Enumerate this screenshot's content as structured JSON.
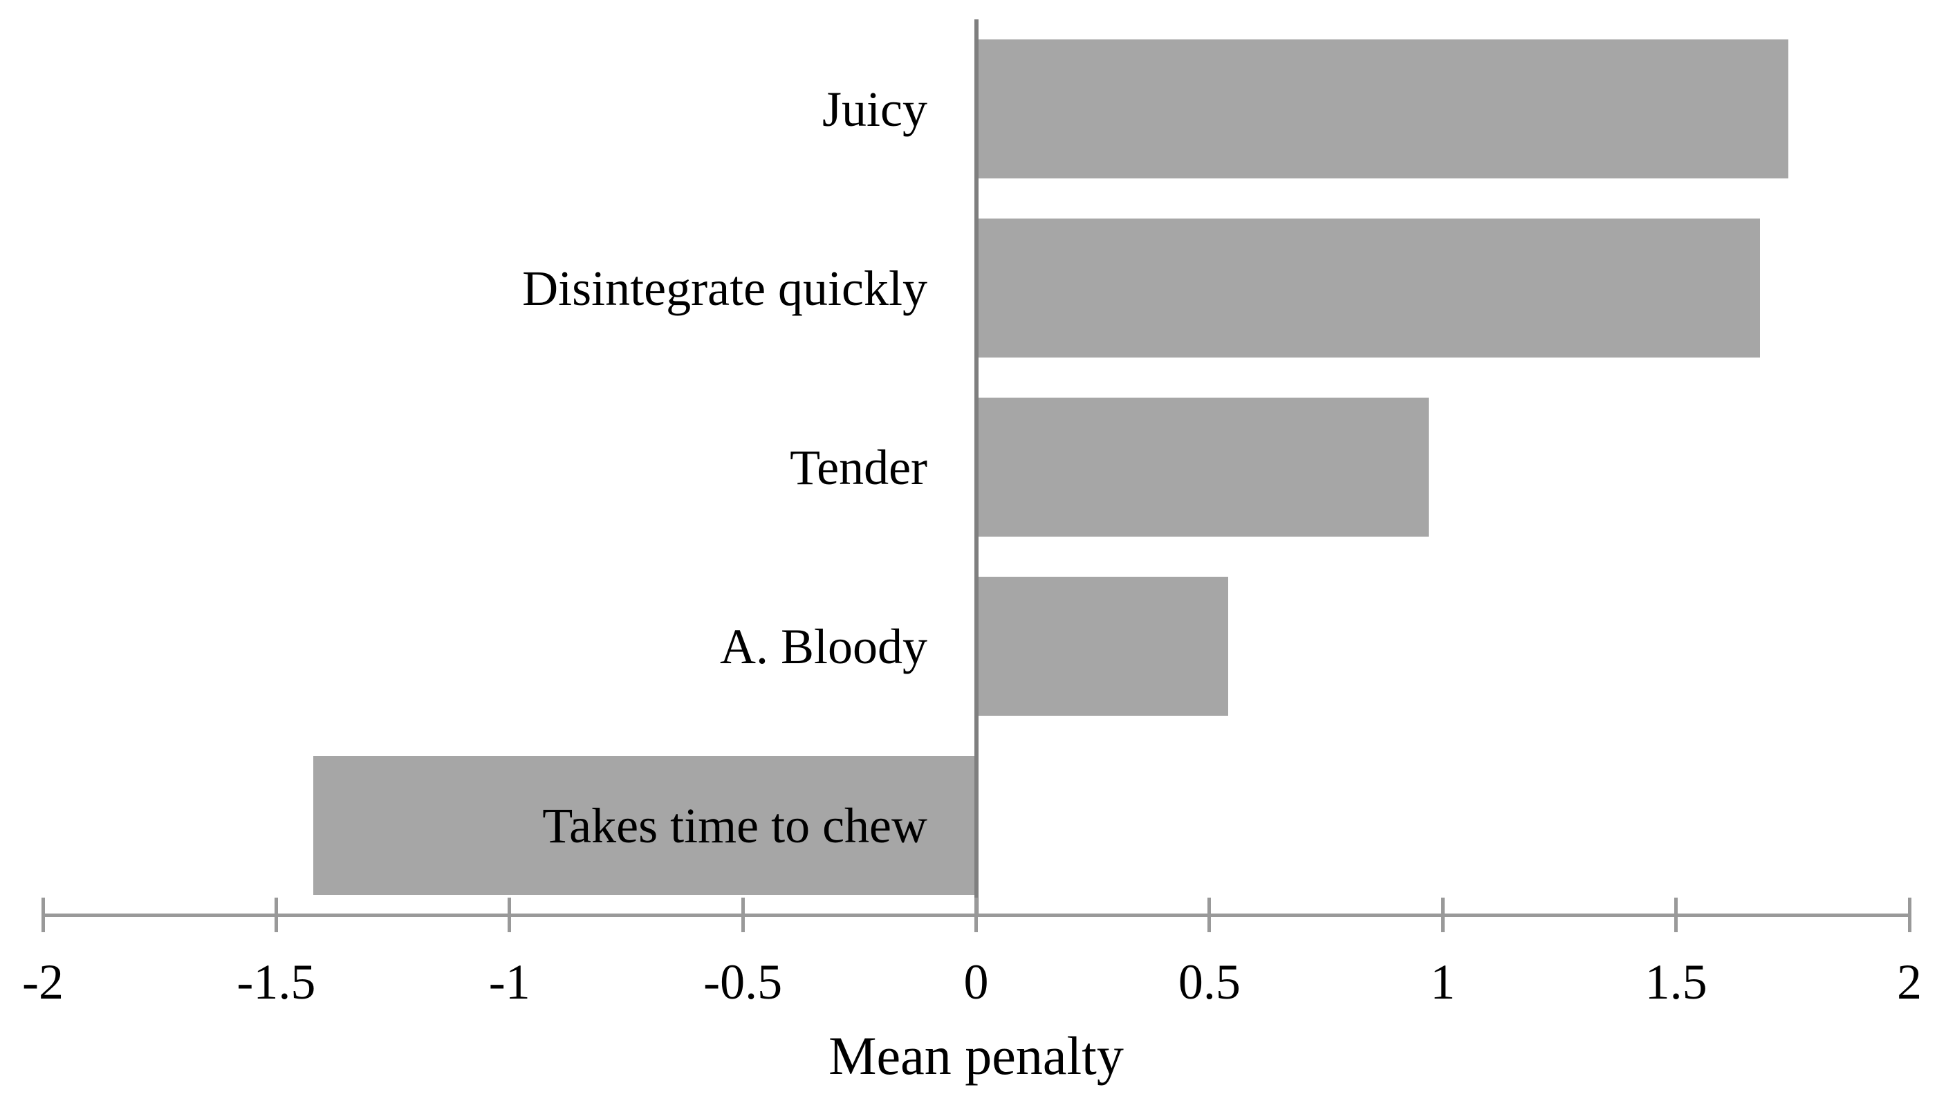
{
  "chart_data": {
    "type": "bar",
    "orientation": "horizontal",
    "title": "",
    "xlabel": "Mean penalty",
    "ylabel": "",
    "categories": [
      "Juicy",
      "Disintegrate quickly",
      "Tender",
      "A. Bloody",
      "Takes time to chew"
    ],
    "values": [
      1.74,
      1.68,
      0.97,
      0.54,
      -1.42
    ],
    "xlim": [
      -2,
      2
    ],
    "x_ticks": [
      -2,
      -1.5,
      -1,
      -0.5,
      0,
      0.5,
      1,
      1.5,
      2
    ],
    "x_tick_labels": [
      "-2",
      "-1.5",
      "-1",
      "-0.5",
      "0",
      "0.5",
      "1",
      "1.5",
      "2"
    ],
    "grid": false,
    "legend": false,
    "bar_color": "#a6a6a6",
    "axis_color": "#999999",
    "zero_line_color": "#7f7f7f",
    "text_color": "#000000",
    "background_color": "#ffffff"
  }
}
